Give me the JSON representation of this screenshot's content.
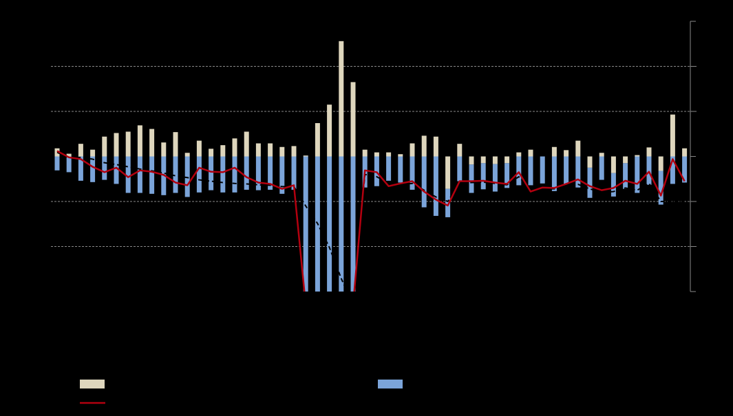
{
  "chart_data": {
    "type": "bar",
    "stacked": true,
    "ylim": [
      -3,
      3
    ],
    "yticks": [
      -3,
      -2,
      -1,
      0,
      1,
      2,
      3
    ],
    "grid": true,
    "background": "#000000",
    "series": [
      {
        "type": "bar",
        "color": "#ded6bd",
        "values": [
          0.18,
          0.06,
          0.28,
          0.15,
          0.44,
          0.52,
          0.55,
          0.69,
          0.61,
          0.31,
          0.54,
          0.08,
          0.35,
          0.17,
          0.25,
          0.4,
          0.55,
          0.29,
          0.29,
          0.21,
          0.23,
          0.02,
          0.74,
          1.15,
          2.56,
          1.65,
          0.15,
          0.09,
          0.09,
          0.05,
          0.29,
          0.46,
          0.44,
          -0.72,
          0.28,
          -0.18,
          -0.15,
          -0.17,
          -0.15,
          0.09,
          0.15,
          0,
          0.21,
          0.14,
          0.35,
          -0.25,
          0.08,
          -0.37,
          -0.15,
          0.03,
          0.2,
          -0.32,
          0.93,
          0.18
        ]
      },
      {
        "type": "bar",
        "color": "#7ba4d9",
        "values": [
          -0.31,
          -0.35,
          -0.54,
          -0.57,
          -0.52,
          -0.61,
          -0.81,
          -0.81,
          -0.83,
          -0.86,
          -0.81,
          -0.9,
          -0.8,
          -0.75,
          -0.8,
          -0.8,
          -0.74,
          -0.75,
          -0.74,
          -0.83,
          -0.74,
          -3.3,
          -3.3,
          -3.3,
          -3.3,
          -3.3,
          -0.69,
          -0.66,
          -0.54,
          -0.58,
          -0.74,
          -1.13,
          -1.32,
          -0.63,
          -0.55,
          -0.63,
          -0.58,
          -0.61,
          -0.55,
          -0.64,
          -0.64,
          -0.6,
          -0.77,
          -0.61,
          -0.69,
          -0.67,
          -0.52,
          -0.52,
          -0.57,
          -0.81,
          -0.63,
          -0.75,
          -0.61,
          -0.58
        ]
      },
      {
        "type": "line",
        "color": "#000000",
        "dashed": true,
        "values": [
          0.09,
          -0.03,
          -0.02,
          -0.06,
          -0.14,
          -0.18,
          -0.23,
          -0.28,
          -0.32,
          -0.37,
          -0.43,
          -0.47,
          -0.52,
          -0.55,
          -0.58,
          -0.6,
          -0.61,
          -0.63,
          -0.64,
          -0.67,
          -0.67,
          -1.1,
          -1.49,
          -2.02,
          -2.71,
          -3.3,
          -0.4,
          -0.45,
          -0.6,
          -0.62,
          -0.6,
          -0.75,
          -0.9,
          -1.0,
          -0.6,
          -0.58,
          -0.57,
          -0.6,
          -0.63,
          -0.45,
          -0.75,
          -0.72,
          -0.72,
          -0.68,
          -0.62,
          -0.72,
          -0.8,
          -0.78,
          -0.7,
          -0.75,
          -0.6,
          -1.0,
          -1.0,
          -1.0
        ]
      },
      {
        "type": "line",
        "color": "#b3000f",
        "values": [
          0.12,
          -0.02,
          -0.06,
          -0.23,
          -0.35,
          -0.25,
          -0.46,
          -0.31,
          -0.34,
          -0.41,
          -0.58,
          -0.64,
          -0.25,
          -0.34,
          -0.35,
          -0.25,
          -0.46,
          -0.58,
          -0.61,
          -0.72,
          -0.64,
          -3.3,
          -3.3,
          -3.3,
          -3.3,
          -3.3,
          -0.31,
          -0.35,
          -0.66,
          -0.6,
          -0.55,
          -0.78,
          -0.96,
          -1.09,
          -0.55,
          -0.55,
          -0.54,
          -0.58,
          -0.61,
          -0.35,
          -0.78,
          -0.69,
          -0.7,
          -0.61,
          -0.51,
          -0.66,
          -0.75,
          -0.7,
          -0.54,
          -0.61,
          -0.34,
          -0.87,
          -0.06,
          -0.55
        ]
      }
    ]
  }
}
